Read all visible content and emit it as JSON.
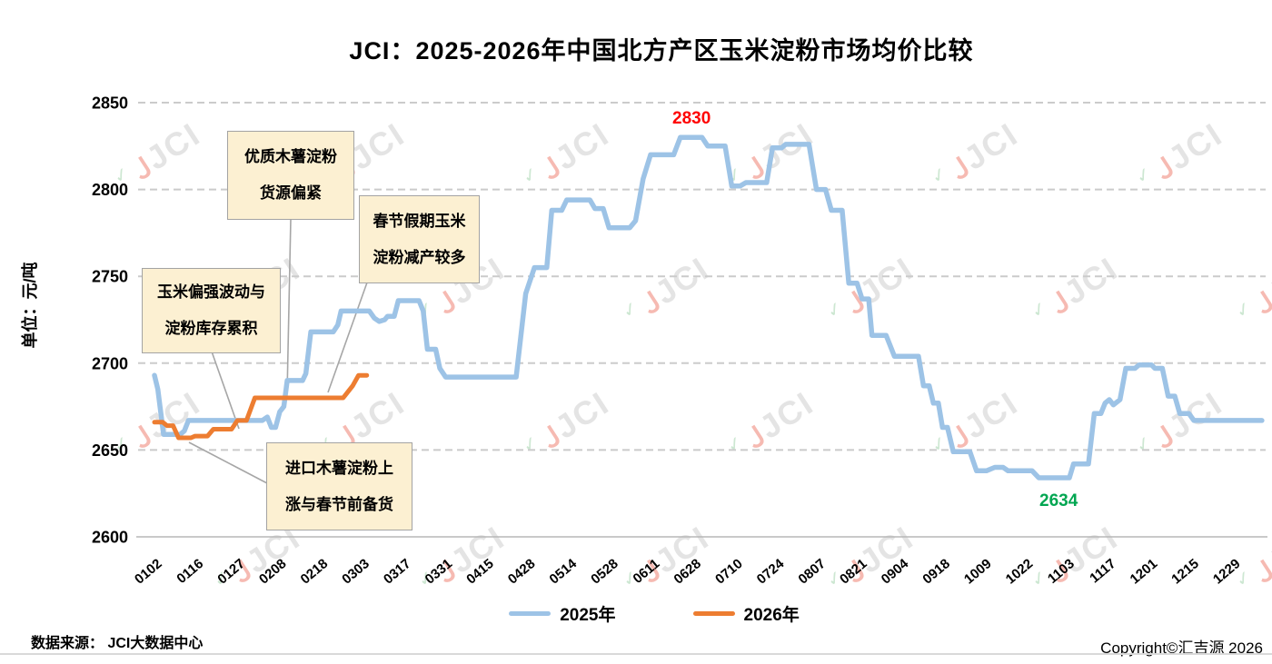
{
  "title": "JCI：2025-2026年中国北方产区玉米淀粉市场均价比较",
  "y_axis": {
    "unit_label": "单位：元/吨",
    "tick_labels": [
      "2850",
      "2800",
      "2750",
      "2700",
      "2650",
      "2600"
    ]
  },
  "legend": [
    {
      "label": "2025年",
      "color": "#9DC3E6"
    },
    {
      "label": "2026年",
      "color": "#ED7D31"
    }
  ],
  "annotations": [
    {
      "lines": [
        "优质木薯淀粉",
        "货源偏紧"
      ]
    },
    {
      "lines": [
        "春节假期玉米",
        "淀粉减产较多"
      ]
    },
    {
      "lines": [
        "玉米偏强波动与",
        "淀粉库存累积"
      ]
    },
    {
      "lines": [
        "进口木薯淀粉上",
        "涨与春节前备货"
      ]
    }
  ],
  "footer": {
    "source": "数据来源： JCI大数据中心",
    "copyright": "Copyright©汇吉源 2026"
  },
  "watermark": {
    "text": "JCI",
    "mark": "Ｊ",
    "check": "✓"
  },
  "chart_data": {
    "type": "line",
    "title": "JCI：2025-2026年中国北方产区玉米淀粉市场均价比较",
    "ylabel": "单位：元/吨",
    "ylim": [
      2600,
      2850
    ],
    "y_ticks": [
      2850,
      2800,
      2750,
      2700,
      2650,
      2600
    ],
    "grid": true,
    "legend_position": "bottom",
    "categories": [
      "0102",
      "0116",
      "0127",
      "0208",
      "0218",
      "0303",
      "0317",
      "0331",
      "0415",
      "0428",
      "0514",
      "0528",
      "0611",
      "0628",
      "0710",
      "0724",
      "0807",
      "0821",
      "0904",
      "0918",
      "1009",
      "1022",
      "1103",
      "1117",
      "1201",
      "1215",
      "1229"
    ],
    "series": [
      {
        "name": "2025年",
        "color": "#9DC3E6",
        "points": [
          [
            0,
            2693
          ],
          [
            0.08,
            2685
          ],
          [
            0.22,
            2659
          ],
          [
            0.62,
            2659
          ],
          [
            0.72,
            2661
          ],
          [
            0.82,
            2667
          ],
          [
            2.6,
            2667
          ],
          [
            2.72,
            2669
          ],
          [
            2.82,
            2663
          ],
          [
            2.92,
            2663
          ],
          [
            3.02,
            2672
          ],
          [
            3.12,
            2675
          ],
          [
            3.2,
            2690
          ],
          [
            3.57,
            2690
          ],
          [
            3.65,
            2694
          ],
          [
            3.77,
            2718
          ],
          [
            4.31,
            2718
          ],
          [
            4.42,
            2722
          ],
          [
            4.5,
            2730
          ],
          [
            5.18,
            2730
          ],
          [
            5.3,
            2726
          ],
          [
            5.42,
            2724
          ],
          [
            5.55,
            2725
          ],
          [
            5.62,
            2727
          ],
          [
            5.78,
            2727
          ],
          [
            5.88,
            2736
          ],
          [
            6.38,
            2736
          ],
          [
            6.48,
            2730
          ],
          [
            6.58,
            2708
          ],
          [
            6.78,
            2708
          ],
          [
            6.88,
            2697
          ],
          [
            7.02,
            2692
          ],
          [
            8.72,
            2692
          ],
          [
            8.95,
            2740
          ],
          [
            9.16,
            2755
          ],
          [
            9.46,
            2755
          ],
          [
            9.58,
            2788
          ],
          [
            9.82,
            2788
          ],
          [
            9.94,
            2794
          ],
          [
            10.5,
            2794
          ],
          [
            10.62,
            2789
          ],
          [
            10.82,
            2789
          ],
          [
            10.96,
            2778
          ],
          [
            11.46,
            2778
          ],
          [
            11.6,
            2782
          ],
          [
            11.78,
            2806
          ],
          [
            11.96,
            2820
          ],
          [
            12.52,
            2820
          ],
          [
            12.68,
            2830
          ],
          [
            13.2,
            2830
          ],
          [
            13.34,
            2825
          ],
          [
            13.76,
            2825
          ],
          [
            13.92,
            2802
          ],
          [
            14.12,
            2802
          ],
          [
            14.26,
            2804
          ],
          [
            14.76,
            2804
          ],
          [
            14.9,
            2824
          ],
          [
            15.12,
            2824
          ],
          [
            15.22,
            2826
          ],
          [
            15.78,
            2826
          ],
          [
            15.96,
            2800
          ],
          [
            16.18,
            2800
          ],
          [
            16.32,
            2788
          ],
          [
            16.58,
            2788
          ],
          [
            16.74,
            2746
          ],
          [
            16.94,
            2746
          ],
          [
            17.06,
            2737
          ],
          [
            17.22,
            2737
          ],
          [
            17.3,
            2716
          ],
          [
            17.64,
            2716
          ],
          [
            17.84,
            2704
          ],
          [
            18.42,
            2704
          ],
          [
            18.54,
            2687
          ],
          [
            18.68,
            2687
          ],
          [
            18.78,
            2677
          ],
          [
            18.9,
            2677
          ],
          [
            19.0,
            2663
          ],
          [
            19.12,
            2663
          ],
          [
            19.26,
            2649
          ],
          [
            19.66,
            2649
          ],
          [
            19.82,
            2638
          ],
          [
            20.06,
            2638
          ],
          [
            20.26,
            2640
          ],
          [
            20.46,
            2640
          ],
          [
            20.58,
            2638
          ],
          [
            21.16,
            2638
          ],
          [
            21.32,
            2634
          ],
          [
            22.06,
            2634
          ],
          [
            22.16,
            2642
          ],
          [
            22.52,
            2642
          ],
          [
            22.66,
            2671
          ],
          [
            22.82,
            2671
          ],
          [
            22.92,
            2677
          ],
          [
            23.02,
            2679
          ],
          [
            23.12,
            2676
          ],
          [
            23.28,
            2679
          ],
          [
            23.42,
            2697
          ],
          [
            23.64,
            2697
          ],
          [
            23.74,
            2699
          ],
          [
            24.04,
            2699
          ],
          [
            24.12,
            2697
          ],
          [
            24.3,
            2697
          ],
          [
            24.44,
            2681
          ],
          [
            24.6,
            2681
          ],
          [
            24.72,
            2671
          ],
          [
            24.94,
            2671
          ],
          [
            25.06,
            2667
          ],
          [
            26.7,
            2667
          ]
        ]
      },
      {
        "name": "2026年",
        "color": "#ED7D31",
        "points": [
          [
            0,
            2666
          ],
          [
            0.2,
            2666
          ],
          [
            0.3,
            2664
          ],
          [
            0.45,
            2664
          ],
          [
            0.58,
            2657
          ],
          [
            0.88,
            2657
          ],
          [
            0.98,
            2658
          ],
          [
            1.28,
            2658
          ],
          [
            1.42,
            2662
          ],
          [
            1.86,
            2662
          ],
          [
            2.0,
            2667
          ],
          [
            2.22,
            2667
          ],
          [
            2.42,
            2680
          ],
          [
            4.55,
            2680
          ],
          [
            4.78,
            2687
          ],
          [
            4.92,
            2693
          ],
          [
            5.12,
            2693
          ]
        ]
      }
    ],
    "point_labels": [
      {
        "text": "2830",
        "color": "#FF0000",
        "u": 12.95,
        "v": 2830,
        "dy": -15
      },
      {
        "text": "2634",
        "color": "#00A651",
        "u": 21.8,
        "v": 2634,
        "dy": 31
      }
    ]
  }
}
